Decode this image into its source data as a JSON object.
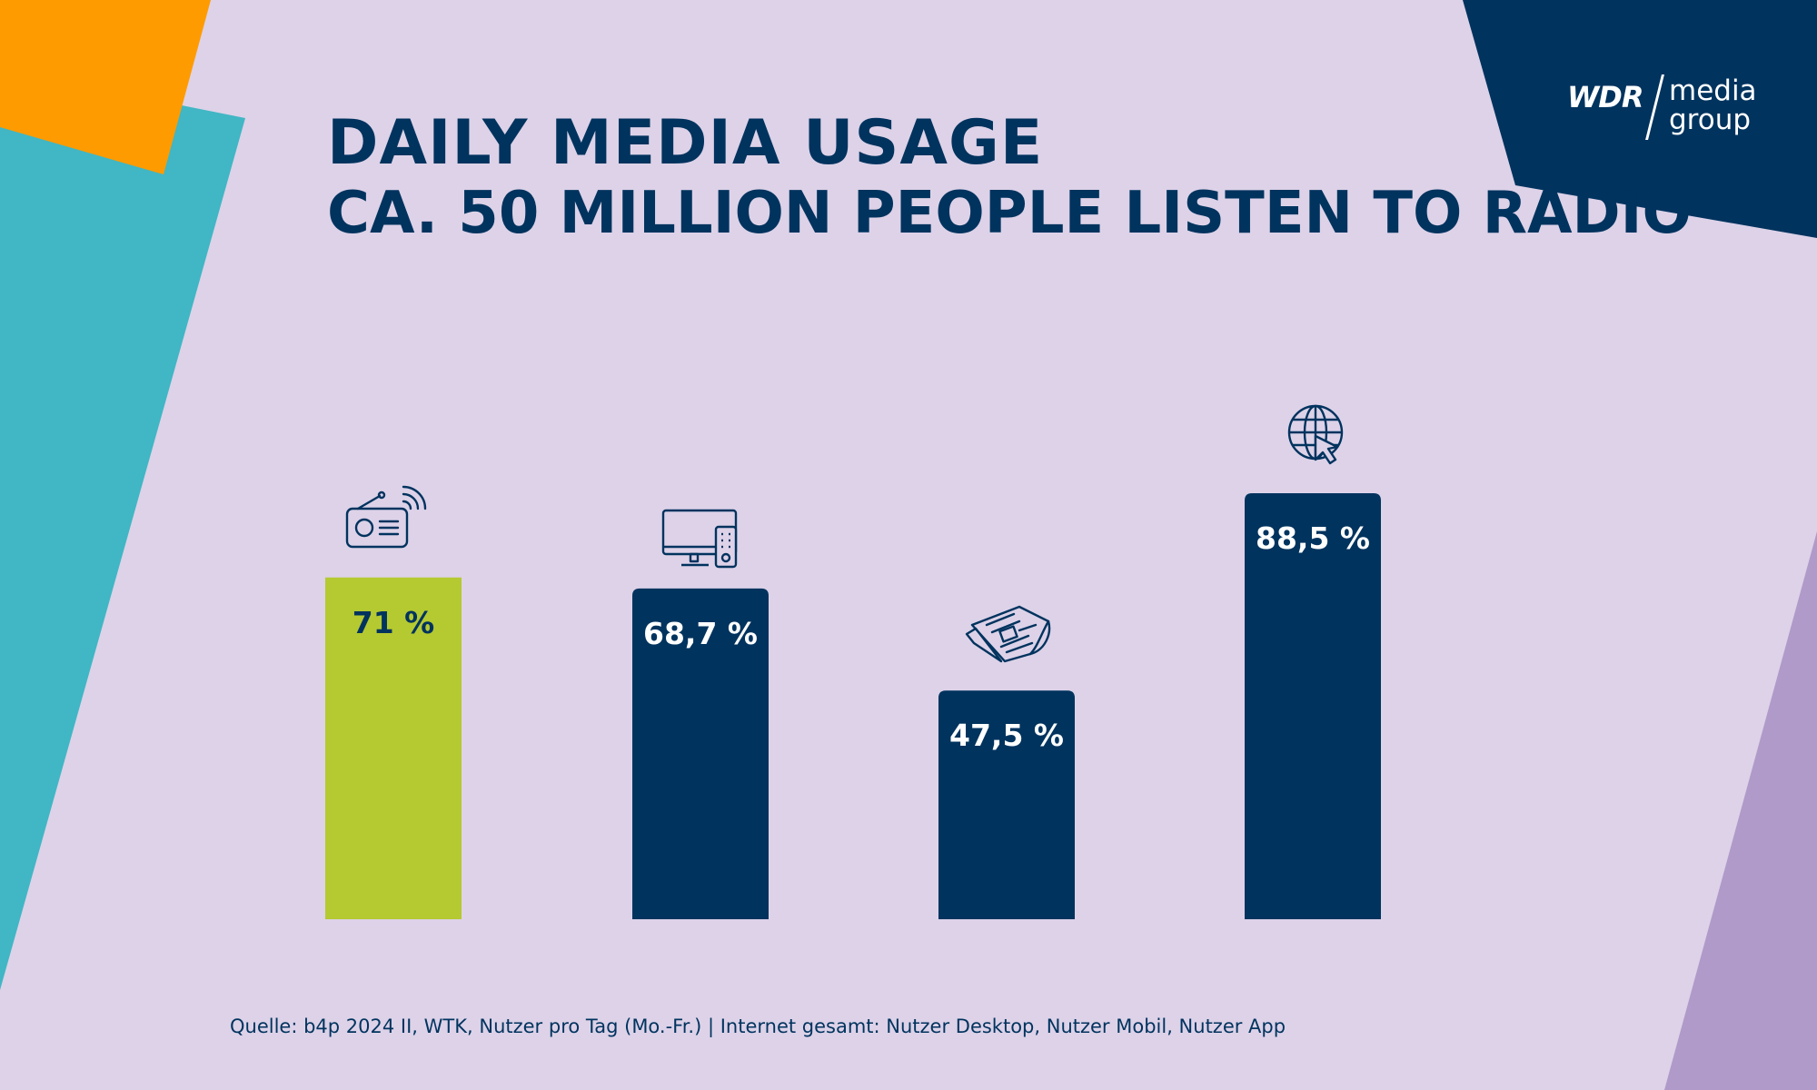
{
  "title": "DAILY MEDIA USAGE",
  "subtitle": "CA. 50 MILLION PEOPLE LISTEN TO RADIO",
  "source": "Quelle: b4p 2024 II, WTK, Nutzer pro Tag (Mo.-Fr.) | Internet gesamt: Nutzer Desktop, Nutzer Mobil, Nutzer App",
  "logo": {
    "brand": "WDR",
    "line1": "media",
    "line2": "group"
  },
  "colors": {
    "background": "#ddd2e8",
    "navy": "#00335e",
    "lime": "#b5c931",
    "orange": "#fe9b00",
    "teal": "#41b6c4",
    "lilac": "#b09ac9"
  },
  "chart_data": {
    "type": "bar",
    "categories": [
      "radio-icon",
      "tv-icon",
      "newspaper-icon",
      "internet-icon"
    ],
    "values": [
      71,
      68.7,
      47.5,
      88.5
    ],
    "labels": [
      "71 %",
      "68,7 %",
      "47,5 %",
      "88,5 %"
    ],
    "highlight_index": 0,
    "ylim": [
      0,
      100
    ],
    "grid": false,
    "title": "DAILY MEDIA USAGE",
    "xlabel": "",
    "ylabel": ""
  }
}
